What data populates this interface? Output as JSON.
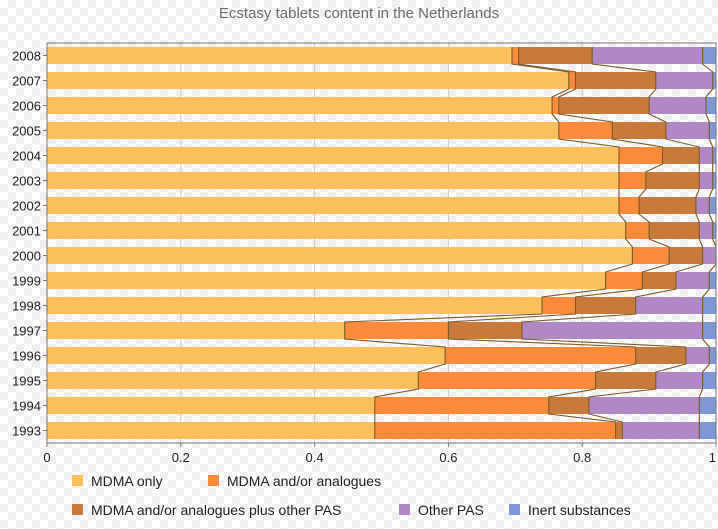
{
  "chart_data": {
    "type": "bar",
    "stacked": true,
    "orientation": "horizontal",
    "title": "Ecstasy tablets content in the Netherlands",
    "categories": [
      "2008",
      "2007",
      "2006",
      "2005",
      "2004",
      "2003",
      "2002",
      "2001",
      "2000",
      "1999",
      "1998",
      "1997",
      "1996",
      "1995",
      "1994",
      "1993"
    ],
    "xlim": [
      0,
      1
    ],
    "xticks": [
      "0",
      "0.2",
      "0.4",
      "0.6",
      "0.8",
      "1"
    ],
    "grid": true,
    "legend_position": "bottom",
    "series": [
      {
        "name": "MDMA only",
        "color": "#fbbf5c",
        "values": [
          0.695,
          0.78,
          0.755,
          0.765,
          0.855,
          0.855,
          0.855,
          0.865,
          0.875,
          0.835,
          0.74,
          0.445,
          0.595,
          0.555,
          0.49,
          0.49
        ]
      },
      {
        "name": "MDMA and/or analogues",
        "color": "#f98b3a",
        "values": [
          0.01,
          0.01,
          0.01,
          0.08,
          0.065,
          0.04,
          0.03,
          0.035,
          0.055,
          0.055,
          0.05,
          0.155,
          0.285,
          0.265,
          0.26,
          0.36
        ]
      },
      {
        "name": "MDMA and/or analogues plus other PAS",
        "color": "#c87a3a",
        "values": [
          0.11,
          0.12,
          0.135,
          0.08,
          0.055,
          0.08,
          0.085,
          0.075,
          0.05,
          0.05,
          0.09,
          0.11,
          0.075,
          0.09,
          0.06,
          0.01
        ]
      },
      {
        "name": "Other PAS",
        "color": "#b088c4",
        "values": [
          0.165,
          0.085,
          0.085,
          0.065,
          0.02,
          0.02,
          0.02,
          0.02,
          0.02,
          0.05,
          0.1,
          0.27,
          0.035,
          0.07,
          0.165,
          0.115
        ]
      },
      {
        "name": "Inert substances",
        "color": "#7f97d6",
        "values": [
          0.02,
          0.005,
          0.015,
          0.01,
          0.005,
          0.005,
          0.01,
          0.005,
          0.0,
          0.01,
          0.02,
          0.02,
          0.01,
          0.02,
          0.025,
          0.025
        ]
      }
    ]
  }
}
